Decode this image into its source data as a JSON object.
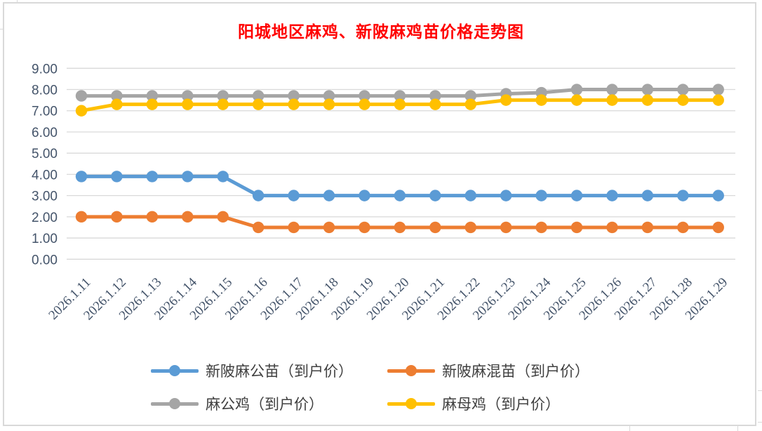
{
  "window": {
    "background": "#FFFFFF",
    "frame_border_color": "#D9D9D9"
  },
  "chart_data": {
    "type": "line",
    "title": "阳城地区麻鸡、新陂麻鸡苗价格走势图",
    "title_color": "#FF0000",
    "xlabel": "",
    "ylabel": "",
    "categories": [
      "2026.1.11",
      "2026.1.12",
      "2026.1.13",
      "2026.1.14",
      "2026.1.15",
      "2026.1.16",
      "2026.1.17",
      "2026.1.18",
      "2026.1.19",
      "2026.1.20",
      "2026.1.21",
      "2026.1.22",
      "2026.1.23",
      "2026.1.24",
      "2026.1.25",
      "2026.1.26",
      "2026.1.27",
      "2026.1.28",
      "2026.1.29"
    ],
    "series": [
      {
        "name": "新陂麻公苗（到户价）",
        "color": "#5B9BD5",
        "values": [
          3.9,
          3.9,
          3.9,
          3.9,
          3.9,
          3.0,
          3.0,
          3.0,
          3.0,
          3.0,
          3.0,
          3.0,
          3.0,
          3.0,
          3.0,
          3.0,
          3.0,
          3.0,
          3.0
        ]
      },
      {
        "name": "新陂麻混苗（到户价）",
        "color": "#ED7D31",
        "values": [
          2.0,
          2.0,
          2.0,
          2.0,
          2.0,
          1.5,
          1.5,
          1.5,
          1.5,
          1.5,
          1.5,
          1.5,
          1.5,
          1.5,
          1.5,
          1.5,
          1.5,
          1.5,
          1.5
        ]
      },
      {
        "name": "麻公鸡（到户价）",
        "color": "#A5A5A5",
        "values": [
          7.7,
          7.7,
          7.7,
          7.7,
          7.7,
          7.7,
          7.7,
          7.7,
          7.7,
          7.7,
          7.7,
          7.7,
          7.8,
          7.85,
          8.0,
          8.0,
          8.0,
          8.0,
          8.0
        ]
      },
      {
        "name": "麻母鸡（到户价）",
        "color": "#FFC000",
        "values": [
          7.0,
          7.3,
          7.3,
          7.3,
          7.3,
          7.3,
          7.3,
          7.3,
          7.3,
          7.3,
          7.3,
          7.3,
          7.5,
          7.5,
          7.5,
          7.5,
          7.5,
          7.5,
          7.5
        ]
      }
    ],
    "y_ticks": [
      "0.00",
      "1.00",
      "2.00",
      "3.00",
      "4.00",
      "5.00",
      "6.00",
      "7.00",
      "8.00",
      "9.00"
    ],
    "ylim": [
      0,
      9
    ],
    "grid": true,
    "gridline_color": "#D9D9D9",
    "axis_label_color": "#44546A",
    "legend_position": "bottom",
    "legend_text_color": "#404040",
    "legend_columns": 2
  }
}
